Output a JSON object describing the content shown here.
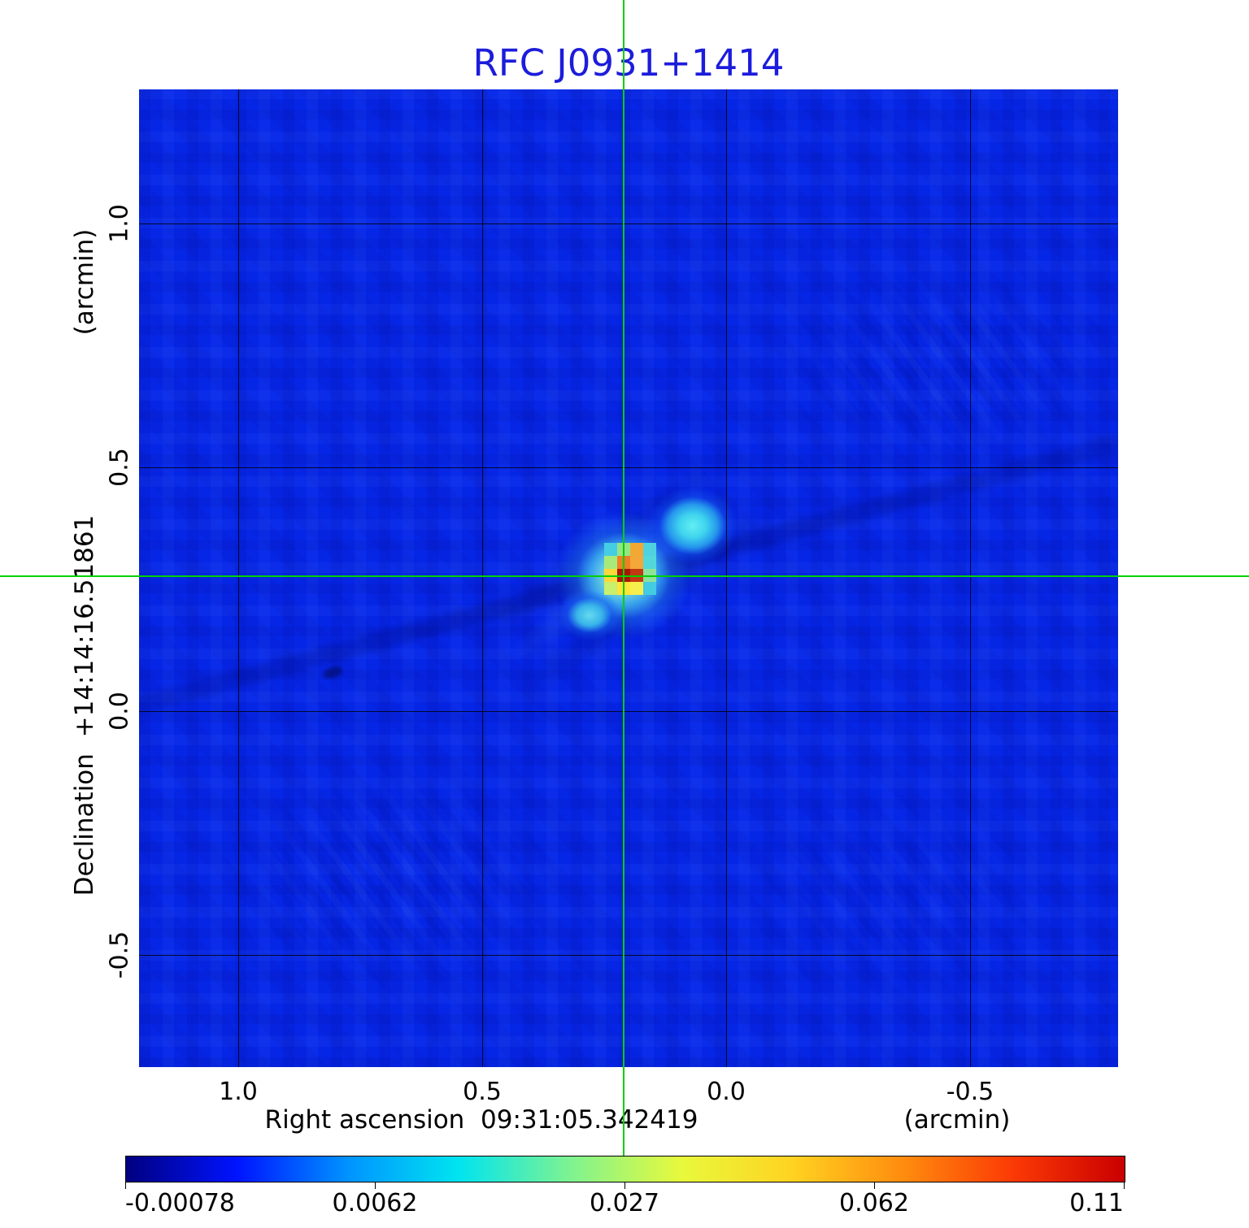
{
  "figure": {
    "title": "RFC J0931+1414",
    "title_color": "#1c1cdc"
  },
  "x_axis": {
    "tick_labels": [
      "1.0",
      "0.5",
      "0.0",
      "-0.5"
    ],
    "label": "Right ascension  09:31:05.342419",
    "unit": "(arcmin)"
  },
  "y_axis": {
    "tick_labels": [
      "1.0",
      "0.5",
      "0.0",
      "-0.5"
    ],
    "label": "Declination  +14:14:16.51861",
    "unit": "(arcmin)"
  },
  "colorbar": {
    "tick_labels": [
      "-0.00078",
      "0.0062",
      "0.027",
      "0.062",
      "0.11"
    ],
    "gradient_stops": [
      "#00007f",
      "#0013ff",
      "#0093ff",
      "#00e4f0",
      "#7df391",
      "#e8f93c",
      "#ffd321",
      "#ff8c0e",
      "#fb3905",
      "#c80000"
    ]
  },
  "crosshair_color": "#00d000",
  "source": {
    "core_pixels": [
      [
        "#45cde4",
        "#93e683",
        "#f2a833",
        "#4ed2e0"
      ],
      [
        "#a8ea7a",
        "#ef7f26",
        "#f3a738",
        "#52d8da"
      ],
      [
        "#ffd83b",
        "#a81408",
        "#c03a12",
        "#8ce39a"
      ],
      [
        "#c8ef6d",
        "#ffe337",
        "#f6ee4d",
        "#43cbe2"
      ]
    ]
  },
  "chart_data": {
    "type": "heatmap",
    "title": "RFC J0931+1414",
    "xlabel": "Right ascension 09:31:05.342419 (arcmin)",
    "ylabel": "Declination +14:14:16.51861 (arcmin)",
    "x_ticks_arcmin": [
      1.0,
      0.5,
      0.0,
      -0.5
    ],
    "y_ticks_arcmin": [
      1.0,
      0.5,
      0.0,
      -0.5
    ],
    "x_range_arcmin": [
      1.2,
      -0.8
    ],
    "y_range_arcmin": [
      -0.73,
      1.27
    ],
    "grid": true,
    "colormap": "jet",
    "colorbar_tick_values": [
      -0.00078,
      0.0062,
      0.027,
      0.062,
      0.11
    ],
    "colorbar_scale": "nonlinear (approx. power-law) flux scale, Jy/beam",
    "crosshair_position_arcmin": {
      "ra_offset": 0.21,
      "dec_offset": 0.28
    },
    "features": [
      {
        "name": "core",
        "ra_offset_arcmin": 0.21,
        "dec_offset_arcmin": 0.28,
        "approx_peak": 0.11,
        "appearance": "dark-red/orange/yellow pixelated peak at crosshair"
      },
      {
        "name": "jet-component-northeast",
        "ra_offset_arcmin": 0.07,
        "dec_offset_arcmin": 0.38,
        "approx_peak": 0.02,
        "appearance": "bright cyan blob"
      },
      {
        "name": "jet-component-southwest",
        "ra_offset_arcmin": 0.27,
        "dec_offset_arcmin": 0.19,
        "approx_peak": 0.01,
        "appearance": "faint cyan blob"
      }
    ],
    "background_level": "~0 (mottled blue noise with faint diagonal sidelobe streaks)"
  }
}
